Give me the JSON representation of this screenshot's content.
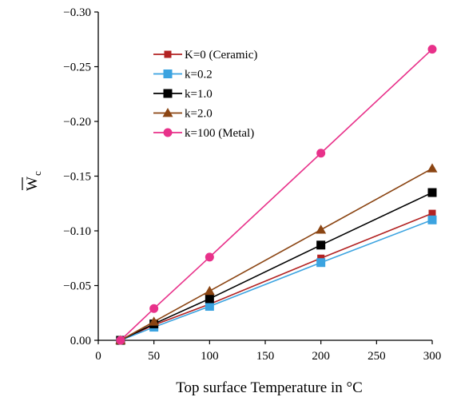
{
  "chart_data": {
    "type": "line",
    "title": "",
    "xlabel": "Top surface Temperature in °C",
    "ylabel_main": "W",
    "ylabel_sub": "c",
    "x_ticks": [
      "0",
      "50",
      "100",
      "150",
      "200",
      "250",
      "300"
    ],
    "y_ticks": [
      "0.00",
      "−0.05",
      "−0.10",
      "−0.15",
      "−0.20",
      "−0.25",
      "−0.30"
    ],
    "xlim": [
      0,
      300
    ],
    "ylim": [
      0,
      -0.3
    ],
    "y_axis_reversed": true,
    "grid": false,
    "legend_position": "upper-left",
    "x": [
      20,
      50,
      100,
      200,
      300
    ],
    "series": [
      {
        "name": "K=0 (Ceramic)",
        "color": "#b22222",
        "marker": "square-small",
        "values": [
          0,
          -0.014,
          -0.033,
          -0.075,
          -0.116
        ]
      },
      {
        "name": "k=0.2",
        "color": "#3ba3e0",
        "marker": "square",
        "values": [
          0,
          -0.012,
          -0.031,
          -0.071,
          -0.11
        ]
      },
      {
        "name": "k=1.0",
        "color": "#000000",
        "marker": "square",
        "values": [
          0,
          -0.015,
          -0.038,
          -0.087,
          -0.135
        ]
      },
      {
        "name": "k=2.0",
        "color": "#8b4513",
        "marker": "triangle",
        "values": [
          0,
          -0.017,
          -0.045,
          -0.101,
          -0.157
        ]
      },
      {
        "name": "k=100 (Metal)",
        "color": "#e8318a",
        "marker": "circle",
        "values": [
          0,
          -0.029,
          -0.076,
          -0.171,
          -0.266
        ]
      }
    ]
  }
}
